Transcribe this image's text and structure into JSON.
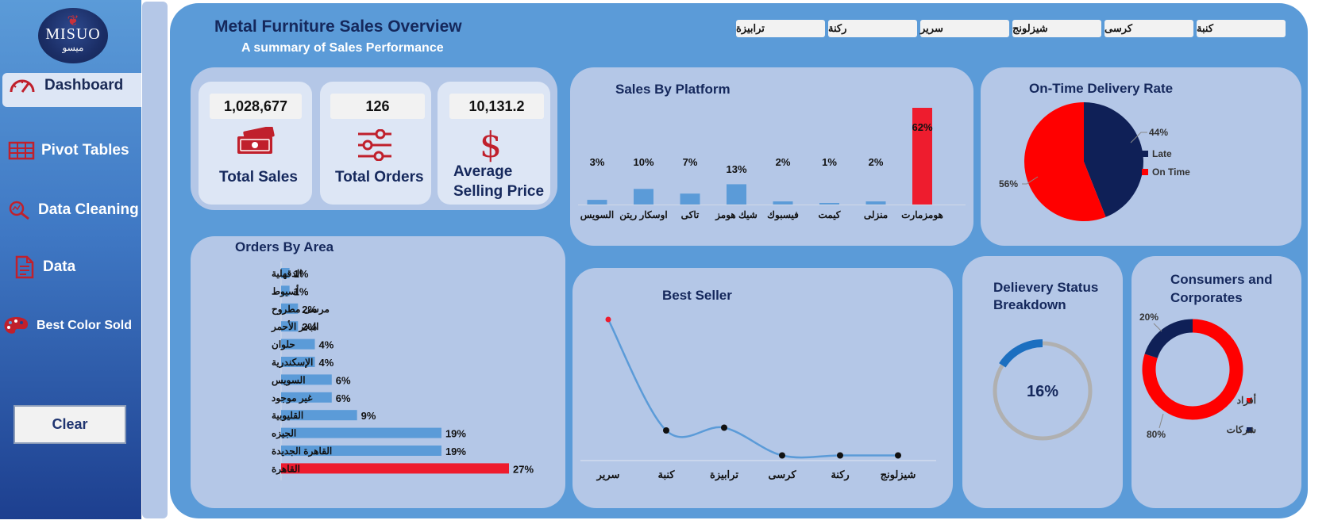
{
  "sidebar": {
    "logo": {
      "text": "MISUO",
      "sub": "ميسو"
    },
    "items": [
      {
        "label": "Dashboard",
        "icon": "gauge-icon",
        "active": true
      },
      {
        "label": "Pivot Tables",
        "icon": "table-icon"
      },
      {
        "label": "Data Cleaning",
        "icon": "magnifier-chart-icon"
      },
      {
        "label": "Data",
        "icon": "document-icon"
      },
      {
        "label": "Best Color Sold",
        "icon": "palette-icon"
      }
    ],
    "clear_label": "Clear"
  },
  "header": {
    "title": "Metal Furniture Sales Overview",
    "subtitle": "A summary of Sales Performance"
  },
  "slicers": [
    "كنبة",
    "كرسى",
    "شيزلونج",
    "سرير",
    "ركنة",
    "ترابيزة"
  ],
  "kpis": {
    "total_sales": {
      "value": "1,028,677",
      "label": "Total Sales",
      "icon": "cash-icon"
    },
    "total_orders": {
      "value": "126",
      "label": "Total Orders",
      "icon": "sliders-icon"
    },
    "avg_price": {
      "value": "10,131.2",
      "label_line1": "Average",
      "label_line2": "Selling Price",
      "icon": "dollar-icon"
    }
  },
  "colors": {
    "navy": "#15285c",
    "red": "#ee1c2e",
    "blue": "#5b9bd8",
    "dark_navy": "#0f2057",
    "gray": "#b0b0b0"
  },
  "chart_data": [
    {
      "type": "bar",
      "title": "Sales By Platform",
      "categories": [
        "السويس",
        "اوسكار ريتن",
        "تاكى",
        "شيك هومز",
        "فيسبوك",
        "كيمت",
        "منزلى",
        "هومزمارت"
      ],
      "values": [
        3,
        10,
        7,
        13,
        2,
        1,
        2,
        62
      ],
      "labels": [
        "3%",
        "10%",
        "7%",
        "13%",
        "2%",
        "1%",
        "2%",
        "62%"
      ],
      "highlight": "هومزمارت",
      "unit": "%"
    },
    {
      "type": "pie",
      "title": "On-Time Delivery Rate",
      "slices": [
        {
          "name": "Late",
          "value": 44,
          "label": "44%",
          "color": "#0f2057"
        },
        {
          "name": "On Time",
          "value": 56,
          "label": "56%",
          "color": "#ff0000"
        }
      ],
      "legend": "right"
    },
    {
      "type": "bar",
      "orientation": "horizontal",
      "title": "Orders By Area",
      "categories": [
        "الدقهلية",
        "أسيوط",
        "مرسى مطروح",
        "البحر الأحمر",
        "حلوان",
        "الإسكندرية",
        "السويس",
        "غير موجود",
        "القليوبية",
        "الجيزه",
        "القاهرة الجديدة",
        "القاهرة"
      ],
      "values": [
        1,
        1,
        2,
        2,
        4,
        4,
        6,
        6,
        9,
        19,
        19,
        27
      ],
      "labels": [
        "1%",
        "1%",
        "2%",
        "2%",
        "4%",
        "4%",
        "6%",
        "6%",
        "9%",
        "19%",
        "19%",
        "27%"
      ],
      "highlight": "القاهرة",
      "unit": "%"
    },
    {
      "type": "line",
      "title": "Best Seller",
      "categories": [
        "سرير",
        "كنبة",
        "ترابيزة",
        "كرسى",
        "ركنة",
        "شيزلونج"
      ],
      "values": [
        100,
        20,
        22,
        2,
        2,
        2
      ],
      "smooth": true
    },
    {
      "type": "pie",
      "subtype": "gauge",
      "title": "Delievery Status Breakdown",
      "value": 16,
      "label": "16%"
    },
    {
      "type": "pie",
      "subtype": "donut",
      "title": "Consumers and Corporates",
      "slices": [
        {
          "name": "أفراد",
          "value": 80,
          "label": "80%",
          "color": "#ff0000"
        },
        {
          "name": "شركات",
          "value": 20,
          "label": "20%",
          "color": "#0f2057"
        }
      ],
      "legend": "right"
    }
  ]
}
